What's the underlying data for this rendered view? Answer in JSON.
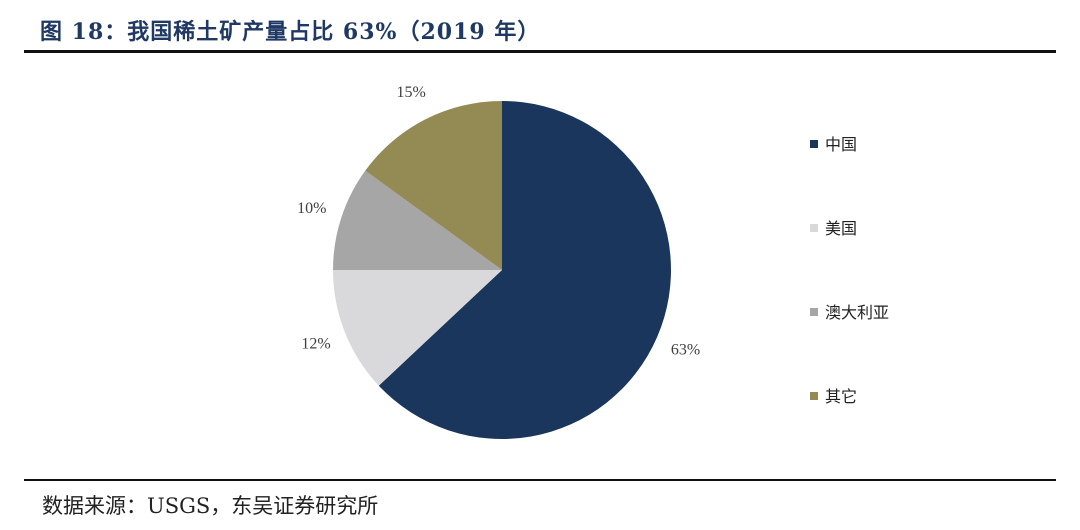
{
  "title": "图 18：我国稀土矿产量占比 63%（2019 年）",
  "source": "数据来源：USGS，东吴证券研究所",
  "chart_data": {
    "type": "pie",
    "title": "我国稀土矿产量占比 63%（2019 年）",
    "categories": [
      "中国",
      "美国",
      "澳大利亚",
      "其它"
    ],
    "values": [
      63,
      12,
      10,
      15
    ],
    "labels": [
      "63%",
      "12%",
      "10%",
      "15%"
    ],
    "colors": [
      "#1b365d",
      "#d9d9dc",
      "#a6a6a6",
      "#948a54"
    ],
    "legend_placement": "right",
    "start_angle": "top, clockwise"
  }
}
